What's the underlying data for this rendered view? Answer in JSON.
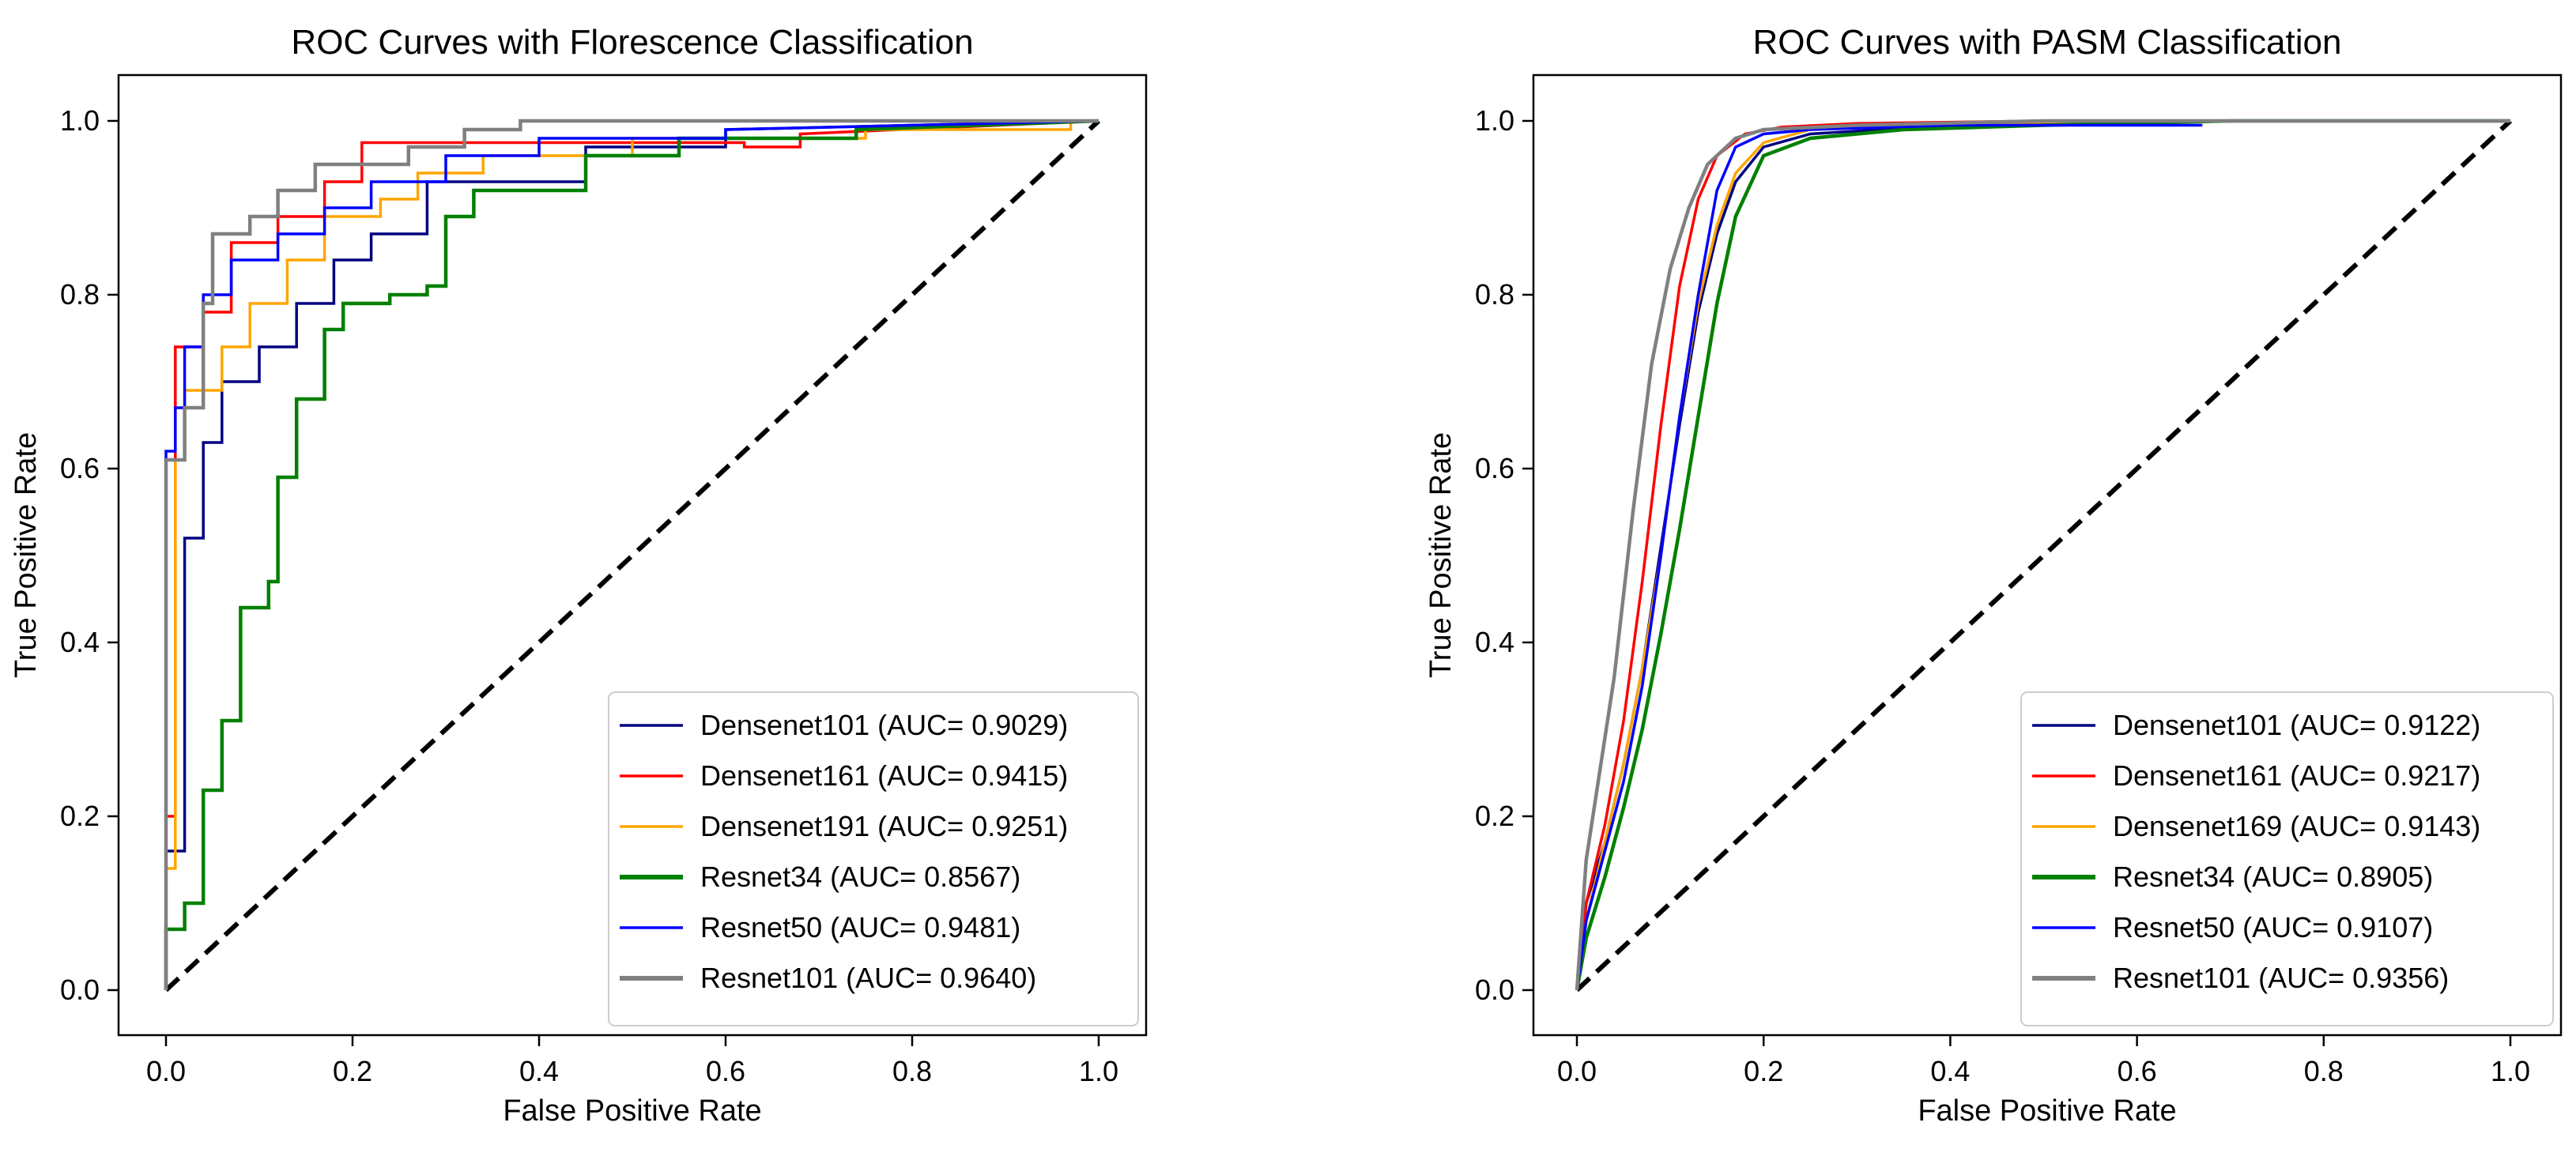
{
  "chart_data": [
    {
      "type": "line",
      "title": "ROC Curves with Florescence Classification",
      "xlabel": "False Positive Rate",
      "ylabel": "True Positive Rate",
      "xlim": [
        0,
        1
      ],
      "ylim": [
        0,
        1
      ],
      "xticks": [
        "0.0",
        "0.2",
        "0.4",
        "0.6",
        "0.8",
        "1.0"
      ],
      "yticks": [
        "0.0",
        "0.2",
        "0.4",
        "0.6",
        "0.8",
        "1.0"
      ],
      "grid": false,
      "legend_position": "lower-right",
      "diagonal": {
        "x": [
          0,
          1
        ],
        "y": [
          0,
          1
        ],
        "color": "#000000",
        "style": "dashed"
      },
      "series": [
        {
          "name": "Densenet101 (AUC= 0.9029)",
          "color": "#000080",
          "x": [
            0,
            0,
            0.02,
            0.02,
            0.04,
            0.04,
            0.06,
            0.06,
            0.1,
            0.1,
            0.14,
            0.14,
            0.18,
            0.18,
            0.22,
            0.22,
            0.28,
            0.28,
            0.45,
            0.45,
            0.6,
            0.6,
            1.0
          ],
          "y": [
            0,
            0.16,
            0.16,
            0.52,
            0.52,
            0.63,
            0.63,
            0.7,
            0.7,
            0.74,
            0.74,
            0.79,
            0.79,
            0.84,
            0.84,
            0.87,
            0.87,
            0.93,
            0.93,
            0.97,
            0.97,
            0.99,
            1.0
          ]
        },
        {
          "name": "Densenet161 (AUC= 0.9415)",
          "color": "#ff0000",
          "x": [
            0,
            0,
            0.01,
            0.01,
            0.04,
            0.04,
            0.07,
            0.07,
            0.12,
            0.12,
            0.17,
            0.17,
            0.21,
            0.21,
            0.32,
            0.32,
            0.62,
            0.62,
            0.68,
            0.68,
            1.0
          ],
          "y": [
            0,
            0.2,
            0.2,
            0.74,
            0.74,
            0.78,
            0.78,
            0.86,
            0.86,
            0.89,
            0.89,
            0.93,
            0.93,
            0.975,
            0.975,
            0.975,
            0.975,
            0.97,
            0.97,
            0.985,
            1.0
          ]
        },
        {
          "name": "Densenet191 (AUC= 0.9251)",
          "color": "#ffa500",
          "x": [
            0,
            0,
            0.01,
            0.01,
            0.02,
            0.02,
            0.06,
            0.06,
            0.09,
            0.09,
            0.13,
            0.13,
            0.17,
            0.17,
            0.23,
            0.23,
            0.27,
            0.27,
            0.34,
            0.34,
            0.5,
            0.5,
            0.75,
            0.75,
            0.97,
            0.97,
            1.0
          ],
          "y": [
            0,
            0.14,
            0.14,
            0.61,
            0.61,
            0.69,
            0.69,
            0.74,
            0.74,
            0.79,
            0.79,
            0.84,
            0.84,
            0.89,
            0.89,
            0.91,
            0.91,
            0.94,
            0.94,
            0.96,
            0.96,
            0.98,
            0.98,
            0.99,
            0.99,
            1.0,
            1.0
          ]
        },
        {
          "name": "Resnet34 (AUC= 0.8567)",
          "color": "#008000",
          "x": [
            0,
            0,
            0.02,
            0.02,
            0.04,
            0.04,
            0.06,
            0.06,
            0.08,
            0.08,
            0.11,
            0.11,
            0.12,
            0.12,
            0.14,
            0.14,
            0.17,
            0.17,
            0.19,
            0.19,
            0.24,
            0.24,
            0.28,
            0.28,
            0.3,
            0.3,
            0.33,
            0.33,
            0.45,
            0.45,
            0.55,
            0.55,
            0.74,
            0.74,
            1.0
          ],
          "y": [
            0,
            0.07,
            0.07,
            0.1,
            0.1,
            0.23,
            0.23,
            0.31,
            0.31,
            0.44,
            0.44,
            0.47,
            0.47,
            0.59,
            0.59,
            0.68,
            0.68,
            0.76,
            0.76,
            0.79,
            0.79,
            0.8,
            0.8,
            0.81,
            0.81,
            0.89,
            0.89,
            0.92,
            0.92,
            0.96,
            0.96,
            0.98,
            0.98,
            0.99,
            1.0
          ]
        },
        {
          "name": "Resnet50 (AUC= 0.9481)",
          "color": "#0000ff",
          "x": [
            0,
            0,
            0.01,
            0.01,
            0.02,
            0.02,
            0.04,
            0.04,
            0.07,
            0.07,
            0.12,
            0.12,
            0.17,
            0.17,
            0.22,
            0.22,
            0.3,
            0.3,
            0.4,
            0.4,
            0.6,
            0.6,
            1.0
          ],
          "y": [
            0,
            0.62,
            0.62,
            0.67,
            0.67,
            0.74,
            0.74,
            0.8,
            0.8,
            0.84,
            0.84,
            0.87,
            0.87,
            0.9,
            0.9,
            0.93,
            0.93,
            0.96,
            0.96,
            0.98,
            0.98,
            0.99,
            1.0
          ]
        },
        {
          "name": "Resnet101 (AUC= 0.9640)",
          "color": "#808080",
          "x": [
            0,
            0,
            0.02,
            0.02,
            0.04,
            0.04,
            0.05,
            0.05,
            0.09,
            0.09,
            0.12,
            0.12,
            0.16,
            0.16,
            0.2,
            0.2,
            0.26,
            0.26,
            0.32,
            0.32,
            0.38,
            0.38,
            1.0
          ],
          "y": [
            0,
            0.61,
            0.61,
            0.67,
            0.67,
            0.79,
            0.79,
            0.87,
            0.87,
            0.89,
            0.89,
            0.92,
            0.92,
            0.95,
            0.95,
            0.95,
            0.95,
            0.97,
            0.97,
            0.99,
            0.99,
            1.0,
            1.0
          ]
        }
      ]
    },
    {
      "type": "line",
      "title": "ROC Curves with PASM Classification",
      "xlabel": "False Positive Rate",
      "ylabel": "True Positive Rate",
      "xlim": [
        0,
        1
      ],
      "ylim": [
        0,
        1
      ],
      "xticks": [
        "0.0",
        "0.2",
        "0.4",
        "0.6",
        "0.8",
        "1.0"
      ],
      "yticks": [
        "0.0",
        "0.2",
        "0.4",
        "0.6",
        "0.8",
        "1.0"
      ],
      "grid": false,
      "legend_position": "lower-right",
      "diagonal": {
        "x": [
          0,
          1
        ],
        "y": [
          0,
          1
        ],
        "color": "#000000",
        "style": "dashed"
      },
      "series": [
        {
          "name": "Densenet101 (AUC= 0.9122)",
          "color": "#000080",
          "x": [
            0,
            0.01,
            0.03,
            0.05,
            0.07,
            0.09,
            0.11,
            0.13,
            0.15,
            0.17,
            0.2,
            0.25,
            0.4,
            0.6,
            0.8,
            1.0
          ],
          "y": [
            0,
            0.1,
            0.17,
            0.26,
            0.37,
            0.51,
            0.65,
            0.78,
            0.87,
            0.93,
            0.97,
            0.985,
            0.995,
            1.0,
            1.0,
            1.0
          ]
        },
        {
          "name": "Densenet161 (AUC= 0.9217)",
          "color": "#ff0000",
          "x": [
            0,
            0.01,
            0.03,
            0.05,
            0.07,
            0.09,
            0.11,
            0.13,
            0.15,
            0.18,
            0.22,
            0.3,
            0.5,
            0.8,
            1.0
          ],
          "y": [
            0,
            0.1,
            0.19,
            0.31,
            0.47,
            0.65,
            0.81,
            0.91,
            0.96,
            0.985,
            0.993,
            0.997,
            1.0,
            1.0,
            1.0
          ]
        },
        {
          "name": "Densenet169 (AUC= 0.9143)",
          "color": "#ffa500",
          "x": [
            0,
            0.01,
            0.03,
            0.05,
            0.07,
            0.09,
            0.11,
            0.13,
            0.15,
            0.17,
            0.2,
            0.25,
            0.4,
            0.6,
            1.0
          ],
          "y": [
            0,
            0.08,
            0.17,
            0.26,
            0.37,
            0.5,
            0.66,
            0.79,
            0.88,
            0.94,
            0.975,
            0.99,
            0.997,
            1.0,
            1.0
          ]
        },
        {
          "name": "Resnet34 (AUC= 0.8905)",
          "color": "#008000",
          "x": [
            0,
            0.01,
            0.03,
            0.05,
            0.07,
            0.09,
            0.11,
            0.13,
            0.15,
            0.17,
            0.2,
            0.25,
            0.35,
            0.5,
            0.7,
            1.0
          ],
          "y": [
            0,
            0.06,
            0.13,
            0.21,
            0.3,
            0.41,
            0.53,
            0.66,
            0.79,
            0.89,
            0.96,
            0.98,
            0.99,
            0.995,
            1.0,
            1.0
          ]
        },
        {
          "name": "Resnet50 (AUC= 0.9107)",
          "color": "#0000ff",
          "x": [
            0,
            0.01,
            0.03,
            0.05,
            0.07,
            0.09,
            0.11,
            0.13,
            0.15,
            0.17,
            0.2,
            0.25,
            0.4,
            0.67
          ],
          "y": [
            0,
            0.08,
            0.16,
            0.24,
            0.35,
            0.5,
            0.66,
            0.8,
            0.92,
            0.97,
            0.985,
            0.99,
            0.995,
            0.995
          ]
        },
        {
          "name": "Resnet101 (AUC= 0.9356)",
          "color": "#808080",
          "x": [
            0,
            0.01,
            0.02,
            0.04,
            0.06,
            0.08,
            0.1,
            0.12,
            0.14,
            0.17,
            0.2,
            0.3,
            0.5,
            0.8,
            1.0
          ],
          "y": [
            0,
            0.15,
            0.22,
            0.36,
            0.55,
            0.72,
            0.83,
            0.9,
            0.95,
            0.98,
            0.99,
            0.995,
            1.0,
            1.0,
            1.0
          ]
        }
      ]
    }
  ]
}
